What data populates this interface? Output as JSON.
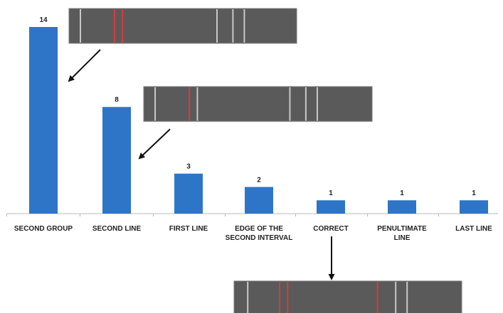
{
  "chart_data": {
    "type": "bar",
    "categories": [
      [
        "SECOND GROUP"
      ],
      [
        "SECOND LINE"
      ],
      [
        "FIRST LINE"
      ],
      [
        "EDGE OF THE",
        "SECOND INTERVAL"
      ],
      [
        "CORRECT"
      ],
      [
        "PENULTIMATE",
        "LINE"
      ],
      [
        "LAST LINE"
      ]
    ],
    "values": [
      14,
      8,
      3,
      2,
      1,
      1,
      1
    ],
    "data_labels": [
      "14",
      "8",
      "3",
      "2",
      "1",
      "1",
      "1"
    ],
    "title": "",
    "xlabel": "",
    "ylabel": "",
    "ylim": [
      0,
      14
    ],
    "grid": false,
    "bar_color": "#2e75c8",
    "axis_color": "#bbbbbb"
  },
  "insets": [
    {
      "name": "second-group-strip",
      "background": "#5a5a5a",
      "border": "#7a7a7a",
      "lines": [
        {
          "position": 0.05,
          "color": "#c8c8c8"
        },
        {
          "position": 0.2,
          "color": "#d93a3a"
        },
        {
          "position": 0.235,
          "color": "#d93a3a"
        },
        {
          "position": 0.65,
          "color": "#c8c8c8"
        },
        {
          "position": 0.72,
          "color": "#c8c8c8"
        },
        {
          "position": 0.77,
          "color": "#c8c8c8"
        }
      ],
      "arrow_target_category": 0
    },
    {
      "name": "second-line-strip",
      "background": "#5a5a5a",
      "border": "#7a7a7a",
      "lines": [
        {
          "position": 0.05,
          "color": "#c8c8c8"
        },
        {
          "position": 0.2,
          "color": "#d93a3a"
        },
        {
          "position": 0.235,
          "color": "#c8c8c8"
        },
        {
          "position": 0.64,
          "color": "#c8c8c8"
        },
        {
          "position": 0.71,
          "color": "#c8c8c8"
        },
        {
          "position": 0.76,
          "color": "#c8c8c8"
        }
      ],
      "arrow_target_category": 1
    },
    {
      "name": "correct-strip",
      "background": "#5a5a5a",
      "border": "#7a7a7a",
      "lines": [
        {
          "position": 0.06,
          "color": "#c8c8c8"
        },
        {
          "position": 0.2,
          "color": "#d93a3a"
        },
        {
          "position": 0.235,
          "color": "#d93a3a"
        },
        {
          "position": 0.63,
          "color": "#d93a3a"
        },
        {
          "position": 0.71,
          "color": "#c8c8c8"
        },
        {
          "position": 0.76,
          "color": "#c8c8c8"
        }
      ],
      "arrow_target_category": 4
    }
  ]
}
